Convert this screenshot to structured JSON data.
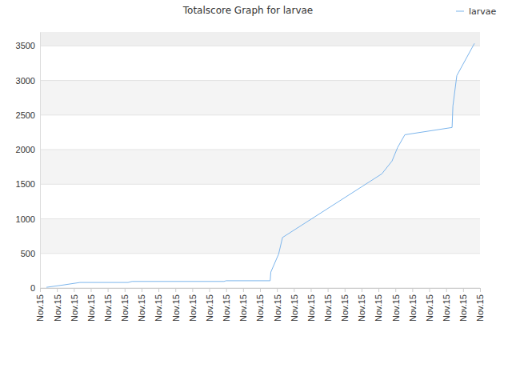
{
  "chart_data": {
    "type": "line",
    "title": "Totalscore Graph for larvae",
    "x": [
      0.38,
      1.42,
      2.36,
      5.2,
      5.44,
      10.87,
      11.0,
      13.6,
      13.64,
      14.1,
      14.33,
      20.2,
      20.8,
      21.13,
      21.56,
      24.35,
      24.4,
      24.63,
      25.67
    ],
    "series": [
      {
        "name": "larvae",
        "color": "#7cb5ec",
        "values": [
          10,
          45,
          80,
          80,
          95,
          95,
          105,
          105,
          230,
          490,
          730,
          1650,
          1835,
          2030,
          2215,
          2320,
          2630,
          3070,
          3535
        ]
      }
    ],
    "xlim": [
      0,
      26
    ],
    "xticks": [
      {
        "value": 0,
        "label": "Nov.15"
      },
      {
        "value": 1,
        "label": "Nov.15"
      },
      {
        "value": 2,
        "label": "Nov.15"
      },
      {
        "value": 3,
        "label": "Nov.15"
      },
      {
        "value": 4,
        "label": "Nov.15"
      },
      {
        "value": 5,
        "label": "Nov.15"
      },
      {
        "value": 6,
        "label": "Nov.15"
      },
      {
        "value": 7,
        "label": "Nov.15"
      },
      {
        "value": 8,
        "label": "Nov.15"
      },
      {
        "value": 9,
        "label": "Nov.15"
      },
      {
        "value": 10,
        "label": "Nov.15"
      },
      {
        "value": 11,
        "label": "Nov.15"
      },
      {
        "value": 12,
        "label": "Nov.15"
      },
      {
        "value": 13,
        "label": "Nov.15"
      },
      {
        "value": 14,
        "label": "Nov.15"
      },
      {
        "value": 15,
        "label": "Nov.15"
      },
      {
        "value": 16,
        "label": "Nov.15"
      },
      {
        "value": 17,
        "label": "Nov.15"
      },
      {
        "value": 18,
        "label": "Nov.15"
      },
      {
        "value": 19,
        "label": "Nov.15"
      },
      {
        "value": 20,
        "label": "Nov.15"
      },
      {
        "value": 21,
        "label": "Nov.15"
      },
      {
        "value": 22,
        "label": "Nov.15"
      },
      {
        "value": 23,
        "label": "Nov.15"
      },
      {
        "value": 24,
        "label": "Nov.15"
      },
      {
        "value": 25,
        "label": "Nov.15"
      },
      {
        "value": 26,
        "label": "Nov.15"
      }
    ],
    "ylim": [
      0,
      3700
    ],
    "yticks": [
      0,
      500,
      1000,
      1500,
      2000,
      2500,
      3000,
      3500
    ],
    "grid": true,
    "legend": "upper right"
  }
}
